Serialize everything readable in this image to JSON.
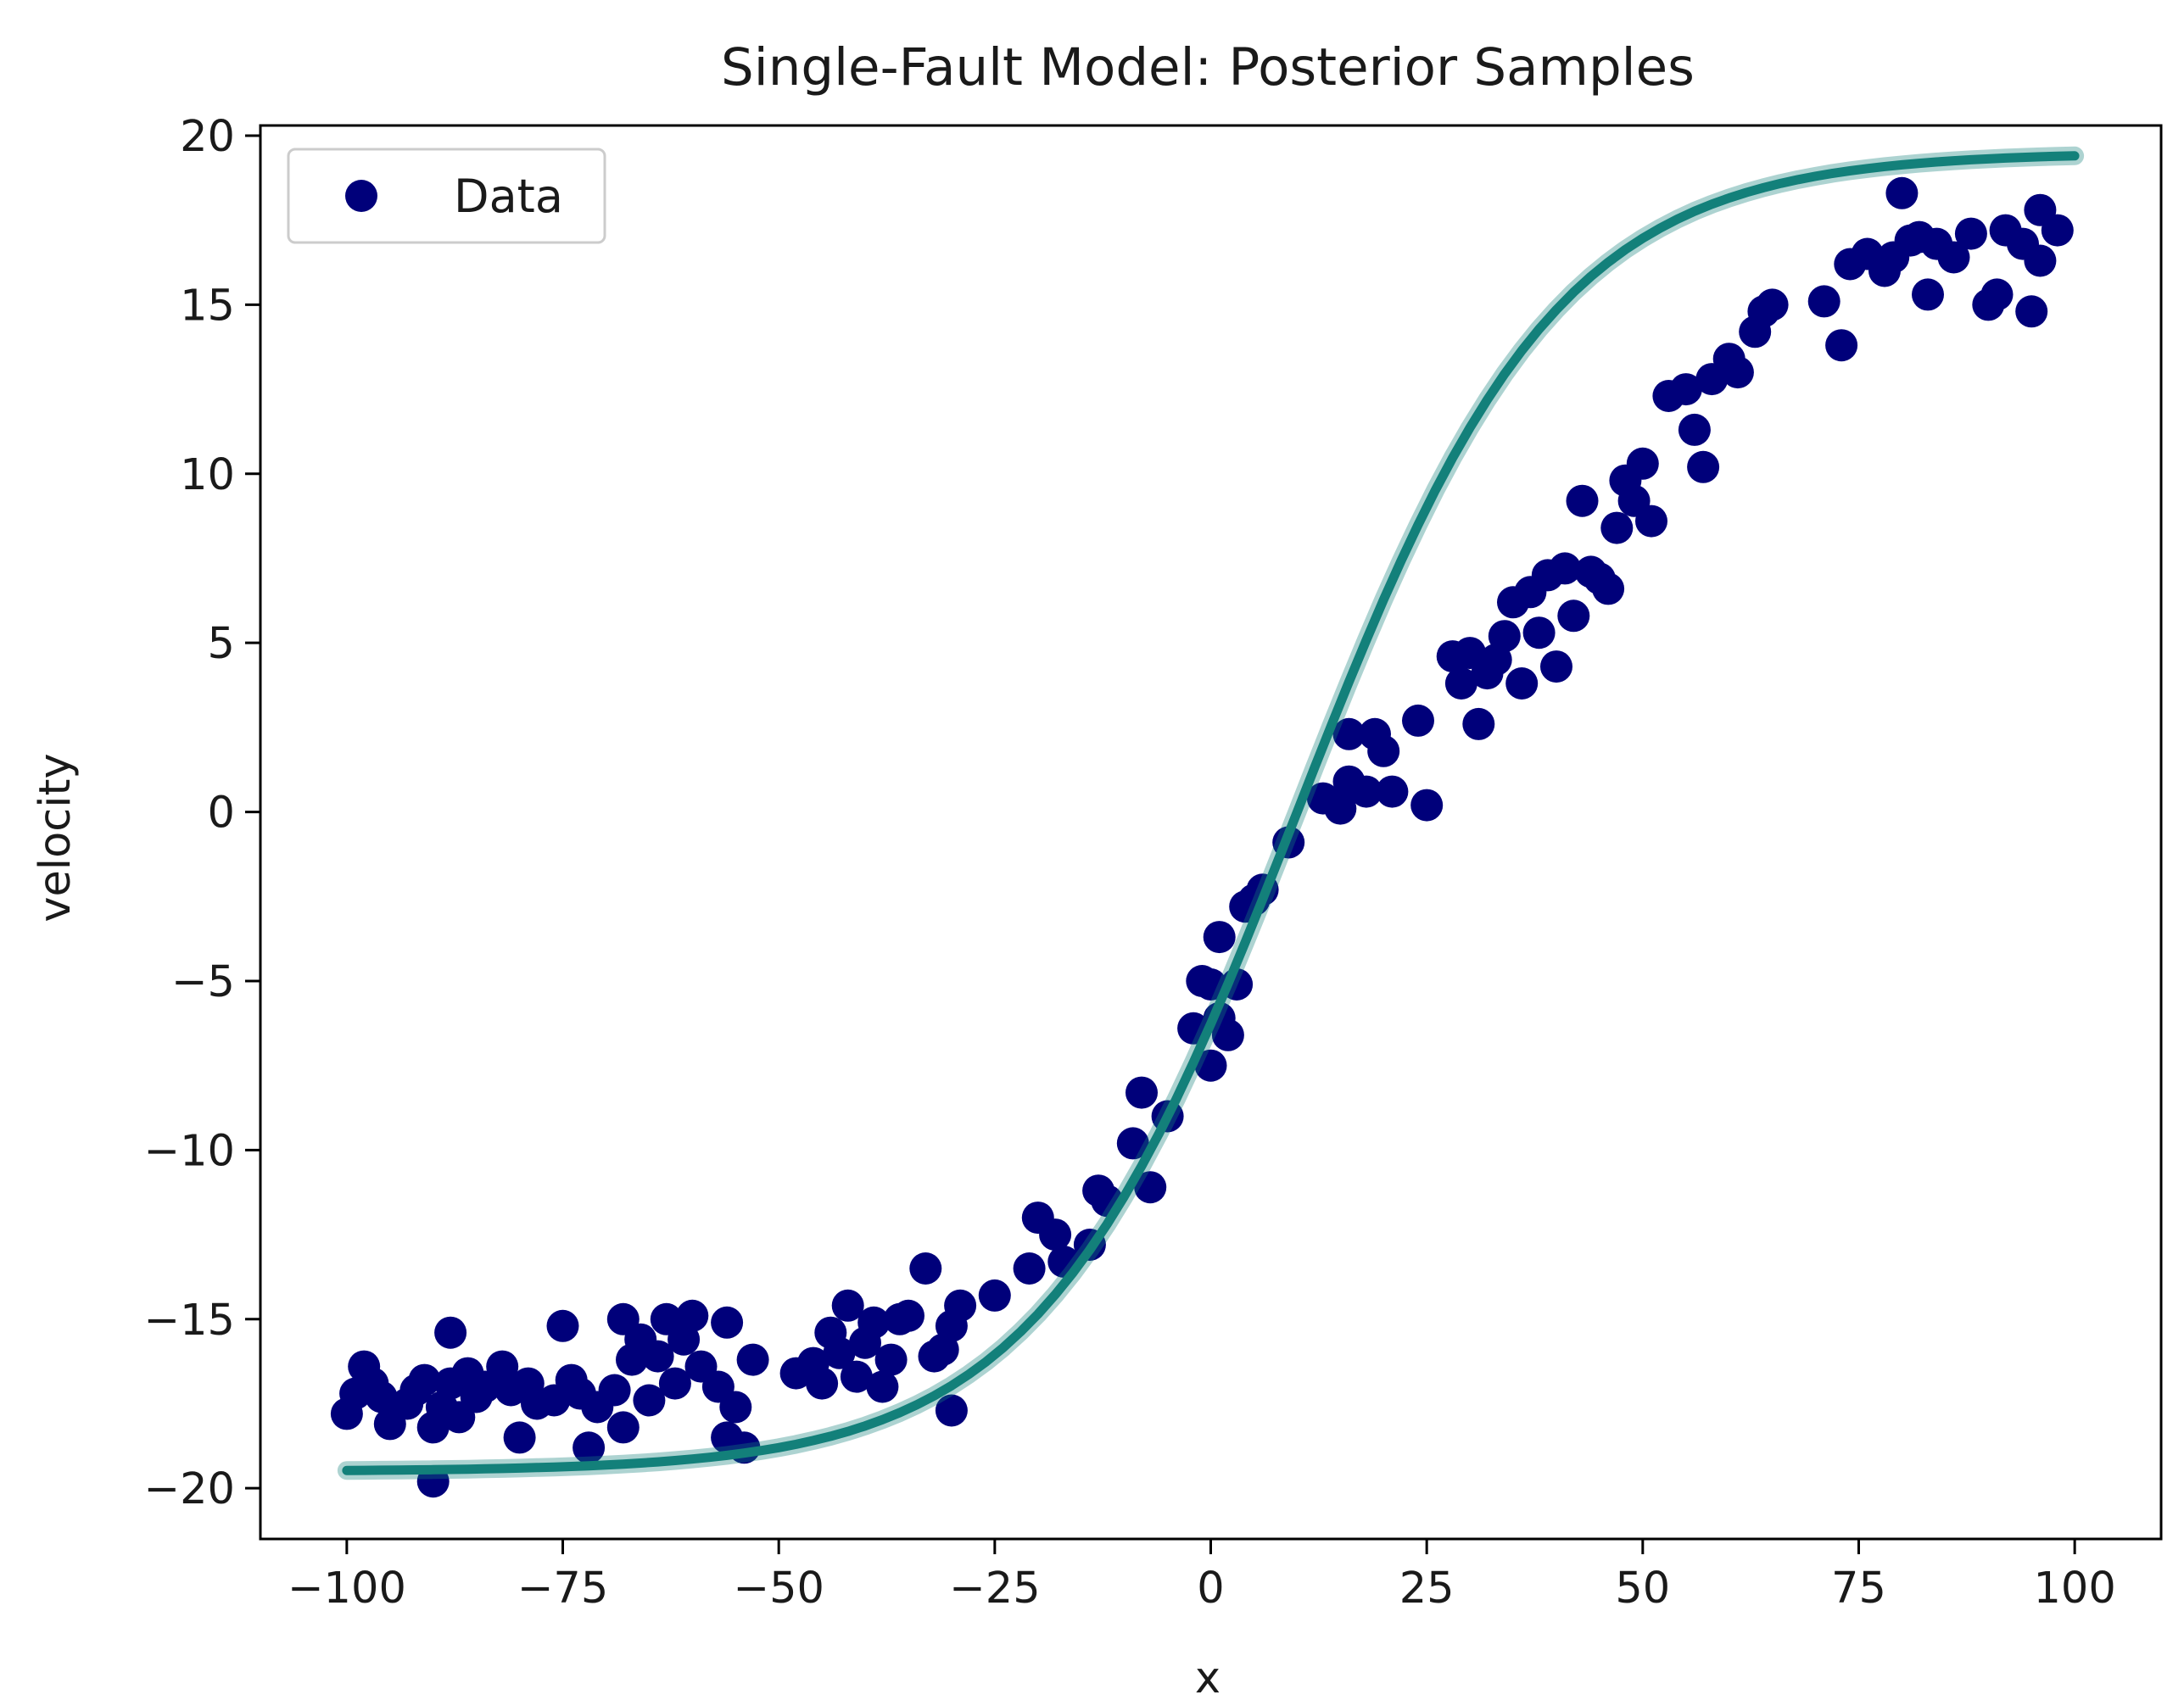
{
  "colors": {
    "points": "#00007a",
    "curve": "#13807a",
    "axes": "#000000",
    "background": "#ffffff"
  },
  "chart_data": {
    "type": "scatter",
    "title": "Single-Fault Model: Posterior Samples",
    "xlabel": "x",
    "ylabel": "velocity",
    "xlim": [
      -110,
      110
    ],
    "ylim": [
      -21.5,
      20.3
    ],
    "xticks": [
      -100,
      -75,
      -50,
      -25,
      0,
      25,
      50,
      75,
      100
    ],
    "xtick_labels": [
      "−100",
      "−75",
      "−50",
      "−25",
      "0",
      "25",
      "50",
      "75",
      "100"
    ],
    "yticks": [
      -20,
      -15,
      -10,
      -5,
      0,
      5,
      10,
      15,
      20
    ],
    "ytick_labels": [
      "−20",
      "−15",
      "−10",
      "−5",
      "0",
      "5",
      "10",
      "15",
      "20"
    ],
    "grid": false,
    "legend": {
      "placement": "top-left",
      "entries": [
        "Data"
      ]
    },
    "series": [
      {
        "name": "Data",
        "type": "scatter",
        "points": [
          [
            -100,
            -17.8
          ],
          [
            -99,
            -17.2
          ],
          [
            -98,
            -16.4
          ],
          [
            -97,
            -16.9
          ],
          [
            -96,
            -17.3
          ],
          [
            -95,
            -18.1
          ],
          [
            -93,
            -17.5
          ],
          [
            -92,
            -17.1
          ],
          [
            -91,
            -16.8
          ],
          [
            -90,
            -19.8
          ],
          [
            -90,
            -18.2
          ],
          [
            -89,
            -17.6
          ],
          [
            -88,
            -15.4
          ],
          [
            -88,
            -16.9
          ],
          [
            -87,
            -17.9
          ],
          [
            -86,
            -16.6
          ],
          [
            -85,
            -17.3
          ],
          [
            -84,
            -17.0
          ],
          [
            -82,
            -16.4
          ],
          [
            -81,
            -17.1
          ],
          [
            -80,
            -18.5
          ],
          [
            -79,
            -16.9
          ],
          [
            -78,
            -17.5
          ],
          [
            -76,
            -17.4
          ],
          [
            -75,
            -15.2
          ],
          [
            -74,
            -16.8
          ],
          [
            -73,
            -17.2
          ],
          [
            -72,
            -18.8
          ],
          [
            -71,
            -17.6
          ],
          [
            -69,
            -17.1
          ],
          [
            -68,
            -15.0
          ],
          [
            -68,
            -18.2
          ],
          [
            -67,
            -16.2
          ],
          [
            -66,
            -15.6
          ],
          [
            -65,
            -17.4
          ],
          [
            -64,
            -16.1
          ],
          [
            -63,
            -15.0
          ],
          [
            -62,
            -16.9
          ],
          [
            -61,
            -15.6
          ],
          [
            -60,
            -14.9
          ],
          [
            -59,
            -16.4
          ],
          [
            -57,
            -17.0
          ],
          [
            -56,
            -18.5
          ],
          [
            -56,
            -15.1
          ],
          [
            -55,
            -17.6
          ],
          [
            -54,
            -18.8
          ],
          [
            -53,
            -16.2
          ],
          [
            -48,
            -16.6
          ],
          [
            -46,
            -16.3
          ],
          [
            -45,
            -16.9
          ],
          [
            -44,
            -15.4
          ],
          [
            -43,
            -16.0
          ],
          [
            -42,
            -14.6
          ],
          [
            -41,
            -16.7
          ],
          [
            -40,
            -15.7
          ],
          [
            -39,
            -15.1
          ],
          [
            -38,
            -17.0
          ],
          [
            -37,
            -16.2
          ],
          [
            -36,
            -15.0
          ],
          [
            -35,
            -14.9
          ],
          [
            -33,
            -13.5
          ],
          [
            -32,
            -16.1
          ],
          [
            -31,
            -15.9
          ],
          [
            -30,
            -17.7
          ],
          [
            -30,
            -15.2
          ],
          [
            -29,
            -14.6
          ],
          [
            -25,
            -14.3
          ],
          [
            -21,
            -13.5
          ],
          [
            -20,
            -12.0
          ],
          [
            -18,
            -12.5
          ],
          [
            -17,
            -13.3
          ],
          [
            -14,
            -12.8
          ],
          [
            -13,
            -11.2
          ],
          [
            -12,
            -11.5
          ],
          [
            -9,
            -9.8
          ],
          [
            -8,
            -8.3
          ],
          [
            -7,
            -11.1
          ],
          [
            -5,
            -9.0
          ],
          [
            -2,
            -6.4
          ],
          [
            -1,
            -5.0
          ],
          [
            0,
            -5.1
          ],
          [
            0,
            -7.5
          ],
          [
            1,
            -3.7
          ],
          [
            1,
            -6.1
          ],
          [
            2,
            -6.6
          ],
          [
            3,
            -5.1
          ],
          [
            4,
            -2.8
          ],
          [
            5,
            -2.6
          ],
          [
            6,
            -2.3
          ],
          [
            9,
            -0.9
          ],
          [
            13,
            0.4
          ],
          [
            15,
            0.1
          ],
          [
            16,
            0.9
          ],
          [
            16,
            2.3
          ],
          [
            18,
            0.6
          ],
          [
            19,
            2.3
          ],
          [
            20,
            1.8
          ],
          [
            21,
            0.6
          ],
          [
            24,
            2.7
          ],
          [
            25,
            0.2
          ],
          [
            28,
            4.6
          ],
          [
            29,
            3.8
          ],
          [
            30,
            4.7
          ],
          [
            31,
            2.6
          ],
          [
            32,
            4.1
          ],
          [
            33,
            4.5
          ],
          [
            34,
            5.2
          ],
          [
            35,
            6.2
          ],
          [
            36,
            3.8
          ],
          [
            37,
            6.5
          ],
          [
            38,
            5.3
          ],
          [
            39,
            7.0
          ],
          [
            40,
            4.3
          ],
          [
            41,
            7.2
          ],
          [
            42,
            5.8
          ],
          [
            43,
            9.2
          ],
          [
            44,
            7.1
          ],
          [
            45,
            6.9
          ],
          [
            46,
            6.6
          ],
          [
            47,
            8.4
          ],
          [
            48,
            9.8
          ],
          [
            49,
            9.2
          ],
          [
            50,
            10.3
          ],
          [
            51,
            8.6
          ],
          [
            53,
            12.3
          ],
          [
            55,
            12.5
          ],
          [
            56,
            11.3
          ],
          [
            57,
            10.2
          ],
          [
            58,
            12.8
          ],
          [
            60,
            13.4
          ],
          [
            61,
            13.0
          ],
          [
            63,
            14.2
          ],
          [
            64,
            14.8
          ],
          [
            65,
            15.0
          ],
          [
            71,
            15.1
          ],
          [
            73,
            13.8
          ],
          [
            74,
            16.2
          ],
          [
            76,
            16.5
          ],
          [
            78,
            16.0
          ],
          [
            79,
            16.4
          ],
          [
            80,
            18.3
          ],
          [
            81,
            16.9
          ],
          [
            82,
            17.0
          ],
          [
            83,
            15.3
          ],
          [
            84,
            16.8
          ],
          [
            86,
            16.4
          ],
          [
            88,
            17.1
          ],
          [
            90,
            15.0
          ],
          [
            91,
            15.3
          ],
          [
            92,
            17.2
          ],
          [
            94,
            16.8
          ],
          [
            95,
            14.8
          ],
          [
            96,
            16.3
          ],
          [
            96,
            17.8
          ],
          [
            98,
            17.2
          ]
        ]
      },
      {
        "type": "line",
        "model": {
          "amplitude": 19.5,
          "center": 10,
          "width": 30
        },
        "x_range": [
          -100,
          100
        ]
      }
    ]
  }
}
